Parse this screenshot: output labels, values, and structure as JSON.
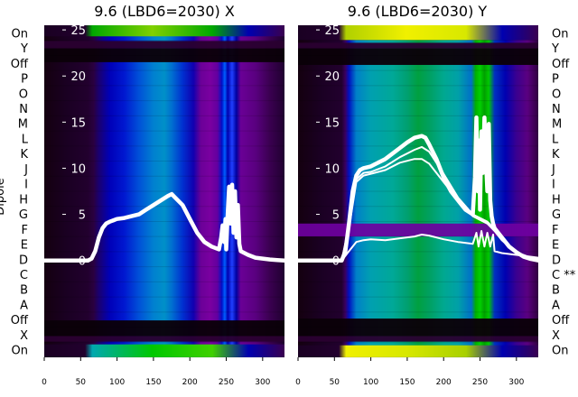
{
  "chart_data": [
    {
      "type": "heatmap",
      "title": "9.6 (LBD6=2030) X",
      "ylabel": "Dipole",
      "xlim": [
        0,
        330
      ],
      "x_ticks": [
        "0",
        "50",
        "100",
        "150",
        "200",
        "250",
        "300"
      ],
      "y_ticks": [
        "0",
        "5",
        "10",
        "15",
        "20",
        "25"
      ],
      "ylim": [
        -10.5,
        25.5
      ],
      "row_labels": [
        "On",
        "Y",
        "Off",
        "P",
        "O",
        "N",
        "M",
        "L",
        "K",
        "J",
        "I",
        "H",
        "G",
        "F",
        "E",
        "D",
        "C",
        "B",
        "A",
        "Off",
        "X",
        "On"
      ],
      "row_labels_side": "left",
      "colormap": "nipy_spectral",
      "line_series": [
        {
          "style": "thick",
          "x": [
            0,
            60,
            65,
            70,
            75,
            80,
            85,
            90,
            100,
            110,
            120,
            130,
            140,
            150,
            160,
            170,
            175,
            180,
            190,
            200,
            210,
            220,
            230,
            240,
            243,
            245,
            247,
            249,
            250,
            252,
            254,
            256,
            258,
            260,
            262,
            264,
            266,
            268,
            270,
            280,
            290,
            300,
            310,
            320,
            330
          ],
          "y": [
            0,
            0,
            0.2,
            1.0,
            2.5,
            3.5,
            4.0,
            4.2,
            4.5,
            4.6,
            4.8,
            5.0,
            5.5,
            6.0,
            6.5,
            7.0,
            7.2,
            6.8,
            6.0,
            4.5,
            3.0,
            2.0,
            1.5,
            1.2,
            2.5,
            3.8,
            2.0,
            4.5,
            1.2,
            5.0,
            8.0,
            4.0,
            8.2,
            3.0,
            7.5,
            2.5,
            6.0,
            1.8,
            1.0,
            0.6,
            0.3,
            0.2,
            0.1,
            0.05,
            0
          ]
        }
      ]
    },
    {
      "type": "heatmap",
      "title": "9.6 (LBD6=2030) Y",
      "xlim": [
        0,
        330
      ],
      "x_ticks": [
        "0",
        "50",
        "100",
        "150",
        "200",
        "250",
        "300"
      ],
      "y_ticks": [
        "0",
        "5",
        "10",
        "15",
        "20",
        "25"
      ],
      "ylim": [
        -10.5,
        25.5
      ],
      "row_labels": [
        "On",
        "Y",
        "Off",
        "P",
        "O",
        "N",
        "M",
        "L",
        "K",
        "J",
        "I",
        "H",
        "G",
        "F",
        "E",
        "D",
        "C **",
        "B",
        "A",
        "Off",
        "X",
        "On"
      ],
      "row_labels_side": "right",
      "colormap": "nipy_spectral",
      "line_series": [
        {
          "style": "thick",
          "x": [
            0,
            60,
            65,
            70,
            75,
            80,
            85,
            90,
            100,
            110,
            120,
            130,
            140,
            150,
            160,
            170,
            175,
            180,
            190,
            200,
            210,
            220,
            230,
            240,
            243,
            245,
            247,
            249,
            250,
            252,
            254,
            256,
            258,
            260,
            262,
            264,
            266,
            268,
            270,
            280,
            290,
            300,
            310,
            320,
            330
          ],
          "y": [
            0,
            0,
            1.0,
            4.0,
            7.5,
            9.2,
            9.8,
            10.0,
            10.2,
            10.6,
            11.0,
            11.6,
            12.2,
            12.8,
            13.3,
            13.5,
            13.3,
            12.6,
            11.0,
            9.0,
            7.5,
            6.5,
            5.5,
            5.0,
            9.0,
            15.5,
            7.5,
            13.0,
            5.5,
            14.0,
            9.5,
            15.5,
            11.0,
            7.5,
            14.8,
            6.5,
            4.8,
            4.0,
            3.5,
            2.5,
            1.5,
            0.9,
            0.4,
            0.15,
            0
          ]
        },
        {
          "style": "thin",
          "x": [
            0,
            60,
            70,
            80,
            90,
            100,
            120,
            140,
            160,
            170,
            180,
            200,
            220,
            240,
            260,
            270,
            280,
            300,
            330
          ],
          "y": [
            0,
            0,
            3.5,
            8.5,
            9.2,
            9.4,
            9.8,
            10.6,
            11.0,
            11.0,
            10.5,
            8.5,
            6.5,
            4.8,
            4.0,
            3.2,
            2.2,
            0.8,
            0
          ],
          "style_note": ""
        },
        {
          "style": "thin",
          "x": [
            0,
            60,
            70,
            80,
            90,
            100,
            120,
            140,
            160,
            170,
            180,
            200,
            220,
            240,
            260,
            270,
            280,
            300,
            330
          ],
          "y": [
            0,
            0,
            3.8,
            8.8,
            9.5,
            9.6,
            10.2,
            11.2,
            12.0,
            12.3,
            11.8,
            9.4,
            6.8,
            5.0,
            4.2,
            3.4,
            2.4,
            0.9,
            0
          ]
        },
        {
          "style": "thin",
          "x": [
            0,
            60,
            70,
            80,
            90,
            100,
            120,
            140,
            160,
            170,
            180,
            200,
            220,
            240,
            245,
            248,
            252,
            256,
            260,
            264,
            268,
            270,
            280,
            300,
            330
          ],
          "y": [
            0,
            0,
            1.0,
            2.0,
            2.2,
            2.3,
            2.2,
            2.4,
            2.6,
            2.8,
            2.7,
            2.3,
            2.0,
            1.8,
            3.0,
            1.5,
            3.2,
            1.5,
            3.0,
            1.5,
            2.8,
            1.0,
            0.8,
            0.6,
            0.3
          ]
        }
      ]
    }
  ]
}
